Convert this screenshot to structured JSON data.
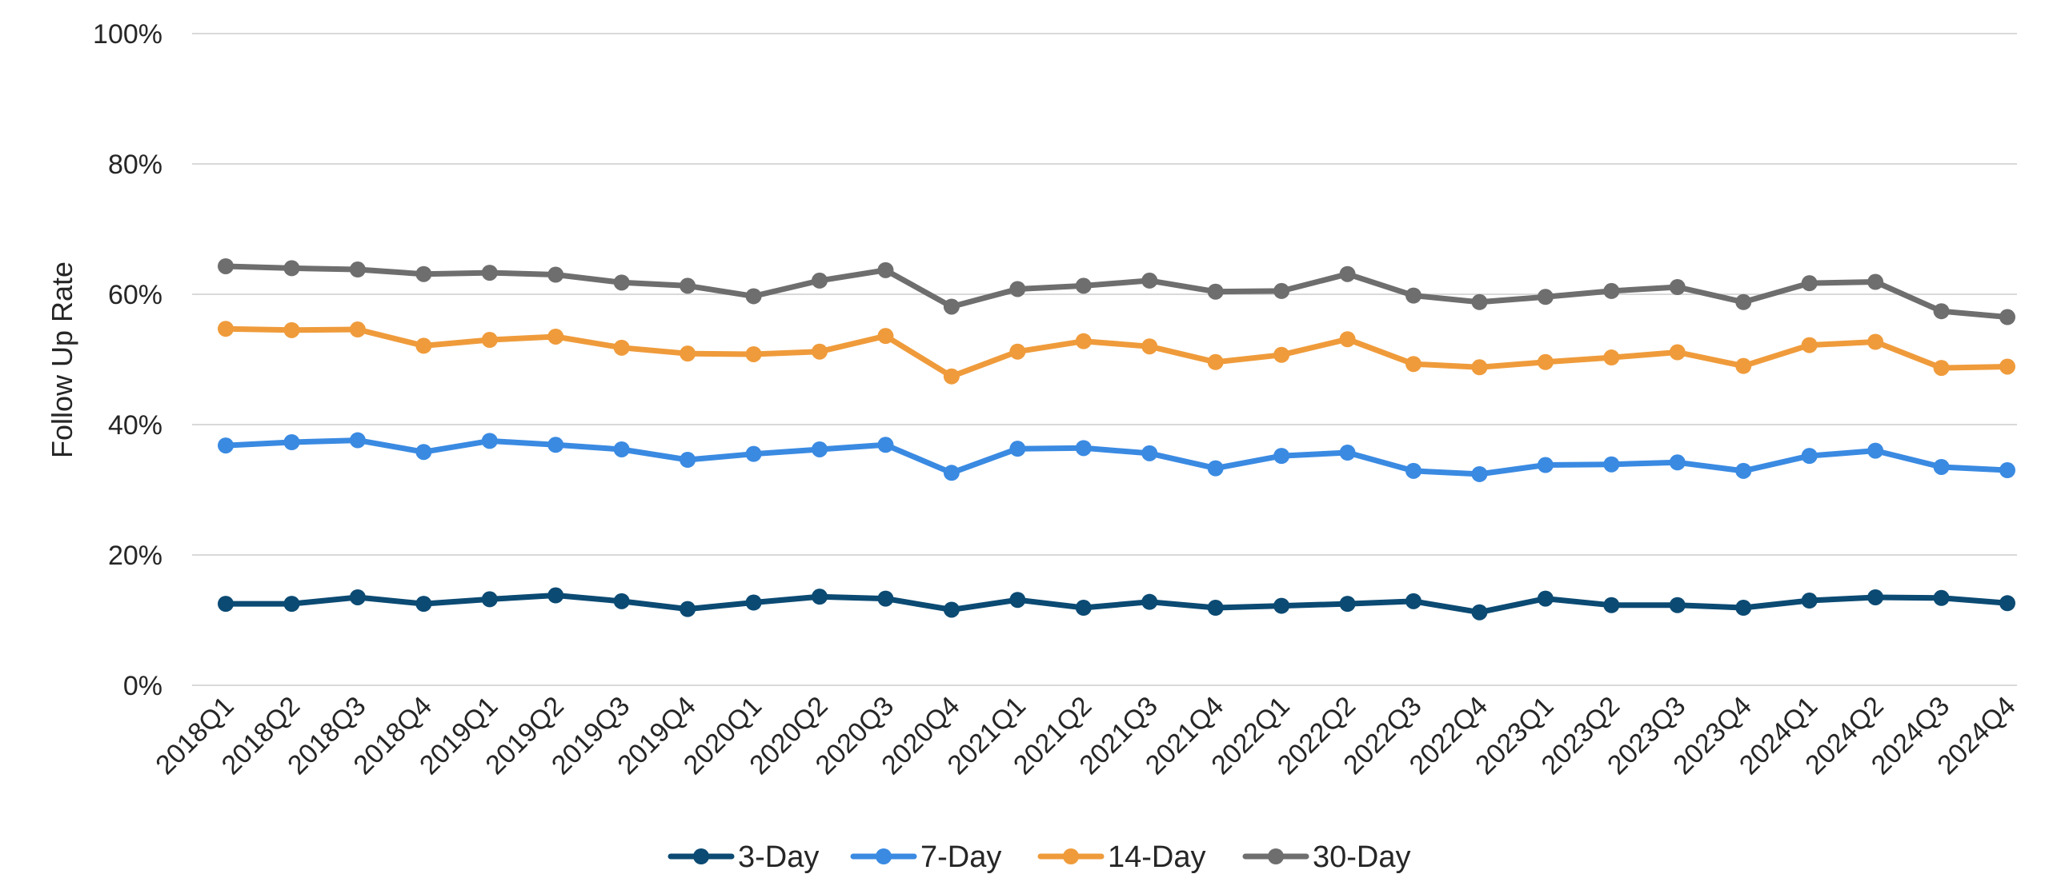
{
  "chart_data": {
    "type": "line",
    "title": "",
    "xlabel": "",
    "ylabel": "Follow Up Rate",
    "ylim": [
      0,
      100
    ],
    "yticks": [
      0,
      20,
      40,
      60,
      80,
      100
    ],
    "ytick_labels": [
      "0%",
      "20%",
      "40%",
      "60%",
      "80%",
      "100%"
    ],
    "grid": true,
    "legend_position": "bottom",
    "categories": [
      "2018Q1",
      "2018Q2",
      "2018Q3",
      "2018Q4",
      "2019Q1",
      "2019Q2",
      "2019Q3",
      "2019Q4",
      "2020Q1",
      "2020Q2",
      "2020Q3",
      "2020Q4",
      "2021Q1",
      "2021Q2",
      "2021Q3",
      "2021Q4",
      "2022Q1",
      "2022Q2",
      "2022Q3",
      "2022Q4",
      "2023Q1",
      "2023Q2",
      "2023Q3",
      "2023Q4",
      "2024Q1",
      "2024Q2",
      "2024Q3",
      "2024Q4"
    ],
    "series": [
      {
        "name": "3-Day",
        "color": "#0b4a73",
        "values": [
          12.5,
          12.5,
          13.5,
          12.5,
          13.2,
          13.8,
          12.9,
          11.7,
          12.7,
          13.6,
          13.3,
          11.6,
          13.1,
          11.9,
          12.8,
          11.9,
          12.2,
          12.5,
          12.9,
          11.2,
          13.3,
          12.3,
          12.3,
          11.9,
          13.0,
          13.5,
          13.4,
          12.6
        ]
      },
      {
        "name": "7-Day",
        "color": "#3a8ae2",
        "values": [
          36.8,
          37.3,
          37.6,
          35.8,
          37.5,
          36.9,
          36.2,
          34.6,
          35.5,
          36.2,
          36.9,
          32.6,
          36.3,
          36.4,
          35.6,
          33.3,
          35.2,
          35.7,
          32.9,
          32.4,
          33.8,
          33.9,
          34.2,
          32.9,
          35.2,
          36.0,
          33.5,
          33.0
        ]
      },
      {
        "name": "14-Day",
        "color": "#ef9b3b",
        "values": [
          54.7,
          54.5,
          54.6,
          52.1,
          53.0,
          53.5,
          51.8,
          50.9,
          50.8,
          51.2,
          53.6,
          47.4,
          51.2,
          52.8,
          52.0,
          49.6,
          50.7,
          53.1,
          49.3,
          48.8,
          49.6,
          50.3,
          51.1,
          49.0,
          52.2,
          52.7,
          48.7,
          48.9
        ]
      },
      {
        "name": "30-Day",
        "color": "#6e6e6e",
        "values": [
          64.3,
          64.0,
          63.8,
          63.1,
          63.3,
          63.0,
          61.8,
          61.3,
          59.7,
          62.1,
          63.7,
          58.1,
          60.8,
          61.3,
          62.1,
          60.4,
          60.5,
          63.1,
          59.8,
          58.8,
          59.6,
          60.5,
          61.1,
          58.8,
          61.7,
          61.9,
          57.4,
          56.5
        ]
      }
    ]
  }
}
